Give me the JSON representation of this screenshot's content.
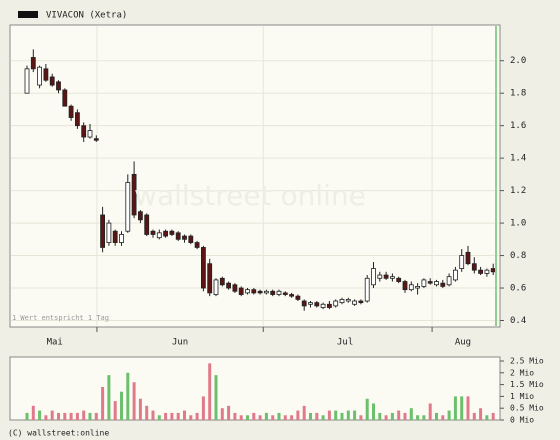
{
  "chart_data": {
    "type": "candlestick",
    "title": "VIVACON (Xetra)",
    "note": "1 Wert entspricht 1 Tag",
    "copyright": "(C) wallstreet:online",
    "watermark": "wallstreet online",
    "months": [
      "Mai",
      "Jun",
      "Jul",
      "Aug"
    ],
    "ylim": [
      0.36,
      2.22
    ],
    "yticks": [
      0.4,
      0.6,
      0.8,
      {
        "value": 1.0,
        "label": "1.0"
      },
      1.2,
      1.4,
      1.6,
      1.8,
      {
        "value": 2.0,
        "label": "2.0"
      }
    ],
    "grid": true,
    "up_color": "#ffffff",
    "down_color": "#5c1414",
    "open": [
      1.8,
      2.02,
      1.85,
      1.95,
      1.9,
      1.87,
      1.82,
      1.72,
      1.68,
      1.6,
      1.53,
      1.52,
      1.05,
      0.88,
      0.95,
      0.88,
      0.95,
      1.3,
      1.07,
      1.05,
      0.95,
      0.91,
      0.95,
      0.95,
      0.94,
      0.92,
      0.92,
      0.88,
      0.85,
      0.75,
      0.56,
      0.66,
      0.63,
      0.62,
      0.6,
      0.57,
      0.59,
      0.58,
      0.57,
      0.58,
      0.56,
      0.57,
      0.56,
      0.55,
      0.52,
      0.5,
      0.51,
      0.48,
      0.5,
      0.49,
      0.51,
      0.52,
      0.5,
      0.52,
      0.52,
      0.62,
      0.66,
      0.68,
      0.66,
      0.66,
      0.64,
      0.59,
      0.6,
      0.61,
      0.64,
      0.62,
      0.63,
      0.62,
      0.65,
      0.72,
      0.82,
      0.75,
      0.71,
      0.69,
      0.72
    ],
    "high": [
      1.97,
      2.07,
      1.97,
      1.98,
      1.92,
      1.88,
      1.83,
      1.73,
      1.7,
      1.62,
      1.61,
      1.54,
      1.1,
      1.02,
      0.96,
      0.95,
      1.3,
      1.38,
      1.08,
      1.06,
      0.96,
      0.96,
      0.96,
      0.96,
      0.95,
      0.93,
      0.93,
      0.89,
      0.86,
      0.78,
      0.66,
      0.67,
      0.64,
      0.63,
      0.61,
      0.6,
      0.6,
      0.59,
      0.59,
      0.59,
      0.59,
      0.58,
      0.57,
      0.56,
      0.53,
      0.52,
      0.52,
      0.51,
      0.52,
      0.53,
      0.54,
      0.54,
      0.53,
      0.53,
      0.68,
      0.76,
      0.7,
      0.7,
      0.69,
      0.67,
      0.65,
      0.64,
      0.63,
      0.66,
      0.66,
      0.65,
      0.65,
      0.69,
      0.73,
      0.84,
      0.86,
      0.79,
      0.73,
      0.72,
      0.75
    ],
    "low": [
      1.8,
      1.93,
      1.83,
      1.87,
      1.84,
      1.8,
      1.72,
      1.63,
      1.58,
      1.5,
      1.52,
      1.5,
      0.82,
      0.86,
      0.86,
      0.86,
      0.94,
      1.03,
      1.0,
      0.92,
      0.91,
      0.9,
      0.91,
      0.92,
      0.89,
      0.88,
      0.87,
      0.84,
      0.58,
      0.55,
      0.55,
      0.61,
      0.59,
      0.57,
      0.55,
      0.56,
      0.56,
      0.56,
      0.56,
      0.55,
      0.55,
      0.55,
      0.54,
      0.52,
      0.46,
      0.48,
      0.48,
      0.47,
      0.47,
      0.48,
      0.5,
      0.51,
      0.49,
      0.5,
      0.51,
      0.6,
      0.64,
      0.65,
      0.64,
      0.63,
      0.57,
      0.58,
      0.56,
      0.6,
      0.62,
      0.61,
      0.6,
      0.61,
      0.64,
      0.7,
      0.74,
      0.69,
      0.68,
      0.67,
      0.68
    ],
    "close": [
      1.95,
      1.95,
      1.96,
      1.88,
      1.85,
      1.82,
      1.72,
      1.65,
      1.6,
      1.53,
      1.57,
      1.51,
      0.85,
      1.0,
      0.88,
      0.93,
      1.25,
      1.05,
      1.02,
      0.93,
      0.93,
      0.94,
      0.92,
      0.93,
      0.9,
      0.9,
      0.88,
      0.85,
      0.6,
      0.57,
      0.65,
      0.62,
      0.6,
      0.58,
      0.56,
      0.59,
      0.57,
      0.57,
      0.58,
      0.56,
      0.58,
      0.56,
      0.55,
      0.53,
      0.49,
      0.51,
      0.49,
      0.5,
      0.48,
      0.52,
      0.53,
      0.53,
      0.52,
      0.51,
      0.66,
      0.72,
      0.68,
      0.66,
      0.67,
      0.64,
      0.59,
      0.62,
      0.61,
      0.65,
      0.63,
      0.64,
      0.61,
      0.67,
      0.71,
      0.8,
      0.75,
      0.71,
      0.69,
      0.71,
      0.7
    ],
    "volume": {
      "ylim": [
        0,
        2.5
      ],
      "yticks": [
        {
          "value": 0,
          "label": "0 Mio"
        },
        {
          "value": 0.5,
          "label": "0.5 Mio"
        },
        {
          "value": 1,
          "label": "1 Mio"
        },
        {
          "value": 1.5,
          "label": "1.5 Mio"
        },
        {
          "value": 2,
          "label": "2 Mio"
        },
        {
          "value": 2.5,
          "label": "2.5 Mio"
        }
      ],
      "up_color": "#6cbf6c",
      "down_color": "#e07a8a",
      "values": [
        0.3,
        0.6,
        0.4,
        0.2,
        0.4,
        0.3,
        0.3,
        0.3,
        0.3,
        0.4,
        0.3,
        0.3,
        1.4,
        1.9,
        0.8,
        1.2,
        2.0,
        1.6,
        0.9,
        0.6,
        0.4,
        0.2,
        0.3,
        0.3,
        0.3,
        0.4,
        0.2,
        0.3,
        1.0,
        2.4,
        1.9,
        0.5,
        0.6,
        0.3,
        0.2,
        0.2,
        0.3,
        0.2,
        0.3,
        0.2,
        0.3,
        0.2,
        0.2,
        0.4,
        0.6,
        0.3,
        0.3,
        0.2,
        0.4,
        0.4,
        0.3,
        0.4,
        0.4,
        0.2,
        0.9,
        0.7,
        0.3,
        0.2,
        0.3,
        0.4,
        0.3,
        0.5,
        0.2,
        0.2,
        0.7,
        0.3,
        0.2,
        0.4,
        1.0,
        1.0,
        1.0,
        0.3,
        0.5,
        0.2,
        0.3
      ]
    }
  }
}
